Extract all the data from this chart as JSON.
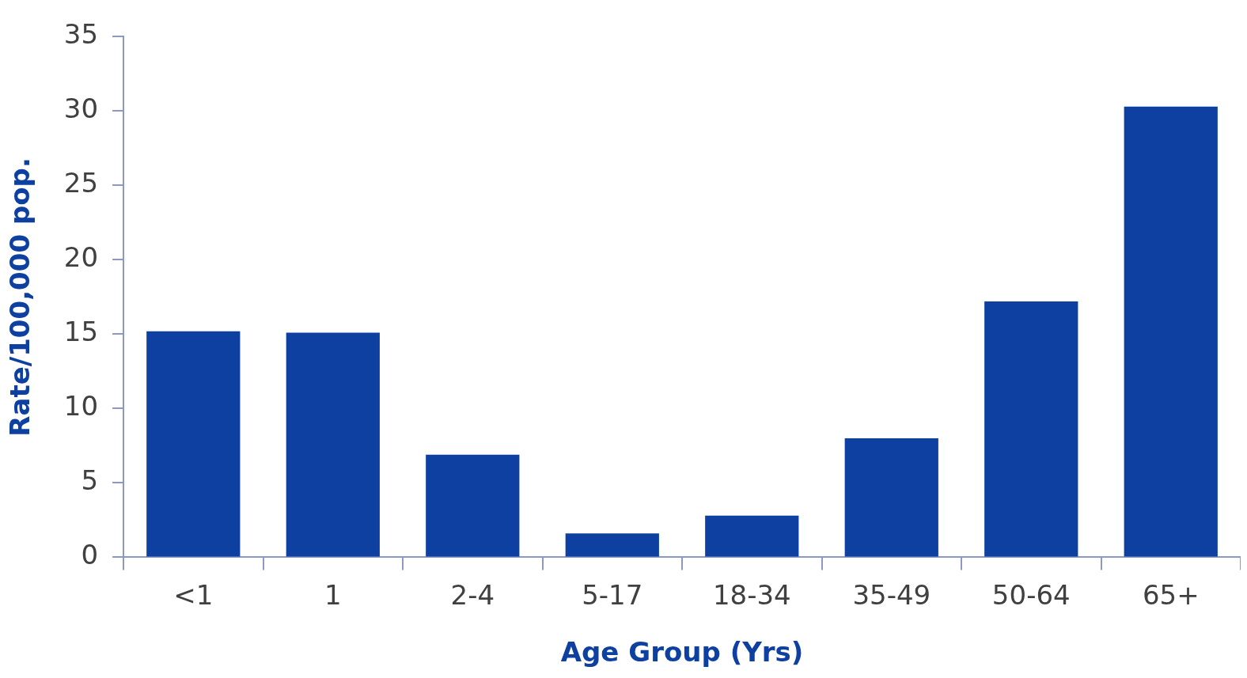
{
  "chart_data": {
    "type": "bar",
    "xlabel": "Age Group (Yrs)",
    "ylabel": "Rate/100,000 pop.",
    "categories": [
      "<1",
      "1",
      "2-4",
      "5-17",
      "18-34",
      "35-49",
      "50-64",
      "65+"
    ],
    "values": [
      15.2,
      15.1,
      6.9,
      1.6,
      2.8,
      8.0,
      17.2,
      30.3
    ],
    "color": "#0d40a0",
    "ylim": [
      0,
      35
    ],
    "yticks": [
      0,
      5,
      10,
      15,
      20,
      25,
      30,
      35
    ],
    "grid": false
  }
}
